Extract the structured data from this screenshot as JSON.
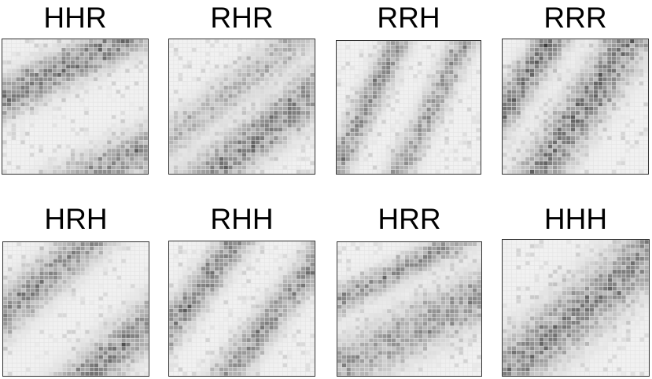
{
  "figure": {
    "type": "heatmap-grid",
    "grid": [
      2,
      4
    ],
    "cells_per_side": 32,
    "colors": {
      "background": "#ffffff",
      "grid_line": "#e3e3e3",
      "frame": "#333333",
      "cell_min": "#f1f1f1",
      "cell_max": "#3a3a3a",
      "title": "#000000"
    }
  },
  "chart_data": [
    {
      "type": "heatmap",
      "title": "HHR",
      "pattern": [
        {
          "offset": 0.55,
          "slope": 0.55,
          "width": 0.09,
          "strength": 0.55
        },
        {
          "offset": -0.35,
          "slope": 0.55,
          "width": 0.1,
          "strength": 0.45
        }
      ],
      "noise": 0.2
    },
    {
      "type": "heatmap",
      "title": "RHR",
      "pattern": [
        {
          "offset": -0.25,
          "slope": 0.85,
          "width": 0.1,
          "strength": 0.5
        },
        {
          "offset": 0.25,
          "slope": 0.85,
          "width": 0.08,
          "strength": 0.3
        }
      ],
      "noise": 0.2
    },
    {
      "type": "heatmap",
      "title": "RRH",
      "pattern": [
        {
          "offset": 0.05,
          "slope": 2.2,
          "width": 0.06,
          "strength": 0.45
        },
        {
          "offset": -0.95,
          "slope": 2.2,
          "width": 0.06,
          "strength": 0.4
        }
      ],
      "noise": 0.18
    },
    {
      "type": "heatmap",
      "title": "RRR",
      "pattern": [
        {
          "offset": 0.45,
          "slope": 1.6,
          "width": 0.07,
          "strength": 0.6
        },
        {
          "offset": -0.4,
          "slope": 1.6,
          "width": 0.1,
          "strength": 0.55
        }
      ],
      "noise": 0.15
    },
    {
      "type": "heatmap",
      "title": "HRH",
      "pattern": [
        {
          "offset": 0.45,
          "slope": 0.95,
          "width": 0.09,
          "strength": 0.5
        },
        {
          "offset": -0.55,
          "slope": 0.95,
          "width": 0.1,
          "strength": 0.5
        }
      ],
      "noise": 0.15
    },
    {
      "type": "heatmap",
      "title": "RHH",
      "pattern": [
        {
          "offset": 0.35,
          "slope": 1.4,
          "width": 0.07,
          "strength": 0.5
        },
        {
          "offset": -0.55,
          "slope": 1.4,
          "width": 0.07,
          "strength": 0.45
        }
      ],
      "noise": 0.22
    },
    {
      "type": "heatmap",
      "title": "HRR",
      "pattern": [
        {
          "offset": 0.05,
          "slope": 0.55,
          "width": 0.12,
          "strength": 0.4
        },
        {
          "offset": 0.55,
          "slope": 0.55,
          "width": 0.06,
          "strength": 0.45
        }
      ],
      "noise": 0.22
    },
    {
      "type": "heatmap",
      "title": "HHH",
      "pattern": [
        {
          "offset": 0.0,
          "slope": 0.9,
          "width": 0.13,
          "strength": 0.5
        }
      ],
      "noise": 0.18
    }
  ]
}
